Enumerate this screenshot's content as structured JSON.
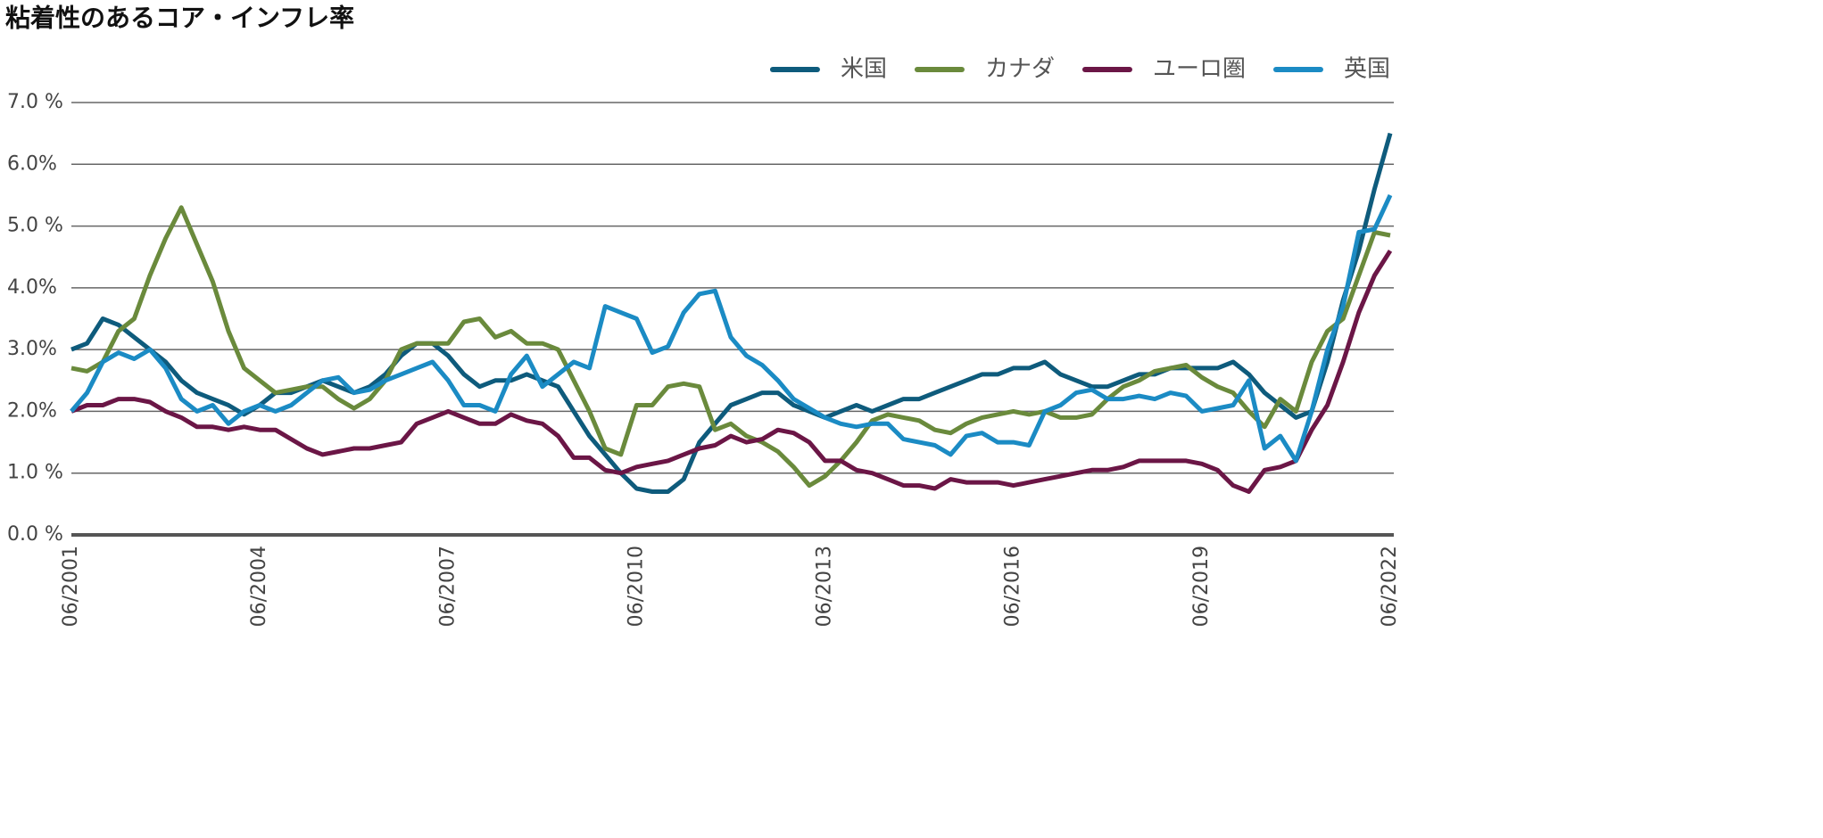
{
  "chart_data": {
    "type": "line",
    "title": "粘着性のあるコア・インフレ率",
    "x": [
      "06/2001",
      "09/2001",
      "12/2001",
      "03/2002",
      "06/2002",
      "09/2002",
      "12/2002",
      "03/2003",
      "06/2003",
      "09/2003",
      "12/2003",
      "03/2004",
      "06/2004",
      "09/2004",
      "12/2004",
      "03/2005",
      "06/2005",
      "09/2005",
      "12/2005",
      "03/2006",
      "06/2006",
      "09/2006",
      "12/2006",
      "03/2007",
      "06/2007",
      "09/2007",
      "12/2007",
      "03/2008",
      "06/2008",
      "09/2008",
      "12/2008",
      "03/2009",
      "06/2009",
      "09/2009",
      "12/2009",
      "03/2010",
      "06/2010",
      "09/2010",
      "12/2010",
      "03/2011",
      "06/2011",
      "09/2011",
      "12/2011",
      "03/2012",
      "06/2012",
      "09/2012",
      "12/2012",
      "03/2013",
      "06/2013",
      "09/2013",
      "12/2013",
      "03/2014",
      "06/2014",
      "09/2014",
      "12/2014",
      "03/2015",
      "06/2015",
      "09/2015",
      "12/2015",
      "03/2016",
      "06/2016",
      "09/2016",
      "12/2016",
      "03/2017",
      "06/2017",
      "09/2017",
      "12/2017",
      "03/2018",
      "06/2018",
      "09/2018",
      "12/2018",
      "03/2019",
      "06/2019",
      "09/2019",
      "12/2019",
      "03/2020",
      "06/2020",
      "09/2020",
      "12/2020",
      "03/2021",
      "06/2021",
      "09/2021",
      "12/2021",
      "03/2022",
      "06/2022"
    ],
    "xticks": [
      "06/2001",
      "06/2004",
      "06/2007",
      "06/2010",
      "06/2013",
      "06/2016",
      "06/2019",
      "06/2022"
    ],
    "series": [
      {
        "name": "米国",
        "color": "#0e5b7c",
        "values": [
          3.0,
          3.1,
          3.5,
          3.4,
          3.2,
          3.0,
          2.8,
          2.5,
          2.3,
          2.2,
          2.1,
          1.95,
          2.1,
          2.3,
          2.3,
          2.4,
          2.5,
          2.4,
          2.3,
          2.4,
          2.6,
          2.9,
          3.1,
          3.1,
          2.9,
          2.6,
          2.4,
          2.5,
          2.5,
          2.6,
          2.5,
          2.4,
          2.0,
          1.6,
          1.3,
          1.0,
          0.75,
          0.7,
          0.7,
          0.9,
          1.5,
          1.8,
          2.1,
          2.2,
          2.3,
          2.3,
          2.1,
          2.0,
          1.9,
          2.0,
          2.1,
          2.0,
          2.1,
          2.2,
          2.2,
          2.3,
          2.4,
          2.5,
          2.6,
          2.6,
          2.7,
          2.7,
          2.8,
          2.6,
          2.5,
          2.4,
          2.4,
          2.5,
          2.6,
          2.6,
          2.7,
          2.7,
          2.7,
          2.7,
          2.8,
          2.6,
          2.3,
          2.1,
          1.9,
          2.0,
          2.8,
          3.8,
          4.6,
          5.6,
          6.5
        ]
      },
      {
        "name": "カナダ",
        "color": "#6a8a3c",
        "values": [
          2.7,
          2.65,
          2.8,
          3.3,
          3.5,
          4.2,
          4.8,
          5.3,
          4.7,
          4.1,
          3.3,
          2.7,
          2.5,
          2.3,
          2.35,
          2.4,
          2.4,
          2.2,
          2.05,
          2.2,
          2.5,
          3.0,
          3.1,
          3.1,
          3.1,
          3.45,
          3.5,
          3.2,
          3.3,
          3.1,
          3.1,
          3.0,
          2.5,
          2.0,
          1.4,
          1.3,
          2.1,
          2.1,
          2.4,
          2.45,
          2.4,
          1.7,
          1.8,
          1.6,
          1.5,
          1.35,
          1.1,
          0.8,
          0.95,
          1.2,
          1.5,
          1.85,
          1.95,
          1.9,
          1.85,
          1.7,
          1.65,
          1.8,
          1.9,
          1.95,
          2.0,
          1.95,
          2.0,
          1.9,
          1.9,
          1.95,
          2.2,
          2.4,
          2.5,
          2.65,
          2.7,
          2.75,
          2.55,
          2.4,
          2.3,
          2.0,
          1.75,
          2.2,
          2.0,
          2.8,
          3.3,
          3.5,
          4.2,
          4.9,
          4.85
        ]
      },
      {
        "name": "ユーロ圏",
        "color": "#6b1646",
        "values": [
          2.0,
          2.1,
          2.1,
          2.2,
          2.2,
          2.15,
          2.0,
          1.9,
          1.75,
          1.75,
          1.7,
          1.75,
          1.7,
          1.7,
          1.55,
          1.4,
          1.3,
          1.35,
          1.4,
          1.4,
          1.45,
          1.5,
          1.8,
          1.9,
          2.0,
          1.9,
          1.8,
          1.8,
          1.95,
          1.85,
          1.8,
          1.6,
          1.25,
          1.25,
          1.05,
          1.0,
          1.1,
          1.15,
          1.2,
          1.3,
          1.4,
          1.45,
          1.6,
          1.5,
          1.55,
          1.7,
          1.65,
          1.5,
          1.2,
          1.2,
          1.05,
          1.0,
          0.9,
          0.8,
          0.8,
          0.75,
          0.9,
          0.85,
          0.85,
          0.85,
          0.8,
          0.85,
          0.9,
          0.95,
          1.0,
          1.05,
          1.05,
          1.1,
          1.2,
          1.2,
          1.2,
          1.2,
          1.15,
          1.05,
          0.8,
          0.7,
          1.05,
          1.1,
          1.2,
          1.7,
          2.1,
          2.8,
          3.6,
          4.2,
          4.6
        ]
      },
      {
        "name": "英国",
        "color": "#1b8bc4",
        "values": [
          2.0,
          2.3,
          2.8,
          2.95,
          2.85,
          3.0,
          2.7,
          2.2,
          2.0,
          2.1,
          1.8,
          2.0,
          2.1,
          2.0,
          2.1,
          2.3,
          2.5,
          2.55,
          2.3,
          2.35,
          2.5,
          2.6,
          2.7,
          2.8,
          2.5,
          2.1,
          2.1,
          2.0,
          2.6,
          2.9,
          2.4,
          2.6,
          2.8,
          2.7,
          3.7,
          3.6,
          3.5,
          2.95,
          3.05,
          3.6,
          3.9,
          3.95,
          3.2,
          2.9,
          2.75,
          2.5,
          2.2,
          2.05,
          1.9,
          1.8,
          1.75,
          1.8,
          1.8,
          1.55,
          1.5,
          1.45,
          1.3,
          1.6,
          1.65,
          1.5,
          1.5,
          1.45,
          2.0,
          2.1,
          2.3,
          2.35,
          2.2,
          2.2,
          2.25,
          2.2,
          2.3,
          2.25,
          2.0,
          2.05,
          2.1,
          2.5,
          1.4,
          1.6,
          1.2,
          2.0,
          3.0,
          3.7,
          4.9,
          4.95,
          5.5
        ]
      }
    ],
    "ylim": [
      0,
      7
    ],
    "yticks": [
      {
        "value": 0,
        "label": "0.0 %"
      },
      {
        "value": 1,
        "label": "1.0 %"
      },
      {
        "value": 2,
        "label": "2.0%"
      },
      {
        "value": 3,
        "label": "3.0%"
      },
      {
        "value": 4,
        "label": "4.0%"
      },
      {
        "value": 5,
        "label": "5.0 %"
      },
      {
        "value": 6,
        "label": "6.0%"
      },
      {
        "value": 7,
        "label": "7.0 %"
      }
    ],
    "grid": true,
    "legend": "upper right"
  }
}
